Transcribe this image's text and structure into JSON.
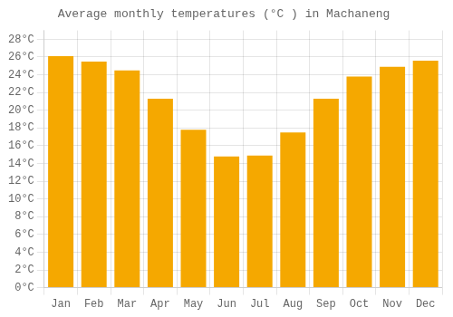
{
  "chart_data": {
    "type": "bar",
    "title": "Average monthly temperatures (°C ) in Machaneng",
    "categories": [
      "Jan",
      "Feb",
      "Mar",
      "Apr",
      "May",
      "Jun",
      "Jul",
      "Aug",
      "Sep",
      "Oct",
      "Nov",
      "Dec"
    ],
    "values": [
      26.1,
      25.5,
      24.5,
      21.3,
      17.8,
      14.8,
      14.9,
      17.5,
      21.3,
      23.8,
      24.9,
      25.6
    ],
    "color": "#F5A800",
    "ylim": [
      0,
      29
    ],
    "yticks": [
      {
        "value": 0,
        "label": "0°C"
      },
      {
        "value": 2,
        "label": "2°C"
      },
      {
        "value": 4,
        "label": "4°C"
      },
      {
        "value": 6,
        "label": "6°C"
      },
      {
        "value": 8,
        "label": "8°C"
      },
      {
        "value": 10,
        "label": "10°C"
      },
      {
        "value": 12,
        "label": "12°C"
      },
      {
        "value": 14,
        "label": "14°C"
      },
      {
        "value": 16,
        "label": "16°C"
      },
      {
        "value": 18,
        "label": "18°C"
      },
      {
        "value": 20,
        "label": "20°C"
      },
      {
        "value": 22,
        "label": "22°C"
      },
      {
        "value": 24,
        "label": "24°C"
      },
      {
        "value": 26,
        "label": "26°C"
      },
      {
        "value": 28,
        "label": "28°C"
      }
    ],
    "grid": true
  }
}
